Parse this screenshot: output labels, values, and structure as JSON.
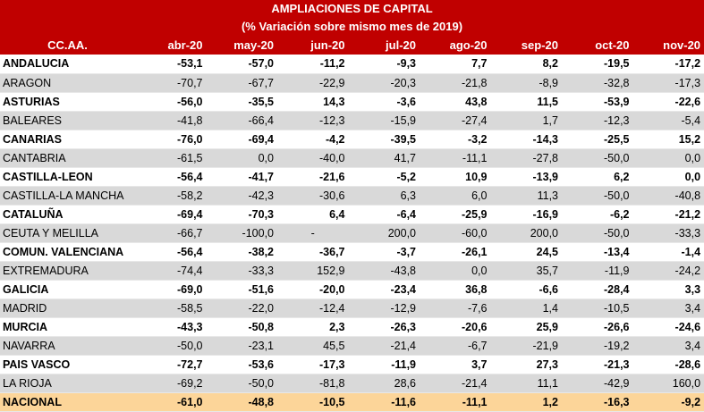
{
  "title": "AMPLIACIONES DE CAPITAL",
  "subtitle": "(%  Variación sobre mismo mes de 2019)",
  "columns": [
    "CC.AA.",
    "abr-20",
    "may-20",
    "jun-20",
    "jul-20",
    "ago-20",
    "sep-20",
    "oct-20",
    "nov-20"
  ],
  "rows": [
    [
      "ANDALUCIA",
      "-53,1",
      "-57,0",
      "-11,2",
      "-9,3",
      "7,7",
      "8,2",
      "-19,5",
      "-17,2"
    ],
    [
      "ARAGON",
      "-70,7",
      "-67,7",
      "-22,9",
      "-20,3",
      "-21,8",
      "-8,9",
      "-32,8",
      "-17,3"
    ],
    [
      "ASTURIAS",
      "-56,0",
      "-35,5",
      "14,3",
      "-3,6",
      "43,8",
      "11,5",
      "-53,9",
      "-22,6"
    ],
    [
      "BALEARES",
      "-41,8",
      "-66,4",
      "-12,3",
      "-15,9",
      "-27,4",
      "1,7",
      "-12,3",
      "-5,4"
    ],
    [
      "CANARIAS",
      "-76,0",
      "-69,4",
      "-4,2",
      "-39,5",
      "-3,2",
      "-14,3",
      "-25,5",
      "15,2"
    ],
    [
      "CANTABRIA",
      "-61,5",
      "0,0",
      "-40,0",
      "41,7",
      "-11,1",
      "-27,8",
      "-50,0",
      "0,0"
    ],
    [
      "CASTILLA-LEON",
      "-56,4",
      "-41,7",
      "-21,6",
      "-5,2",
      "10,9",
      "-13,9",
      "6,2",
      "0,0"
    ],
    [
      "CASTILLA-LA MANCHA",
      "-58,2",
      "-42,3",
      "-30,6",
      "6,3",
      "6,0",
      "11,3",
      "-50,0",
      "-40,8"
    ],
    [
      "CATALUÑA",
      "-69,4",
      "-70,3",
      "6,4",
      "-6,4",
      "-25,9",
      "-16,9",
      "-6,2",
      "-21,2"
    ],
    [
      "CEUTA Y MELILLA",
      "-66,7",
      "-100,0",
      "-",
      "200,0",
      "-60,0",
      "200,0",
      "-50,0",
      "-33,3"
    ],
    [
      "COMUN. VALENCIANA",
      "-56,4",
      "-38,2",
      "-36,7",
      "-3,7",
      "-26,1",
      "24,5",
      "-13,4",
      "-1,4"
    ],
    [
      "EXTREMADURA",
      "-74,4",
      "-33,3",
      "152,9",
      "-43,8",
      "0,0",
      "35,7",
      "-11,9",
      "-24,2"
    ],
    [
      "GALICIA",
      "-69,0",
      "-51,6",
      "-20,0",
      "-23,4",
      "36,8",
      "-6,6",
      "-28,4",
      "3,3"
    ],
    [
      "MADRID",
      "-58,5",
      "-22,0",
      "-12,4",
      "-12,9",
      "-7,6",
      "1,4",
      "-10,5",
      "3,4"
    ],
    [
      "MURCIA",
      "-43,3",
      "-50,8",
      "2,3",
      "-26,3",
      "-20,6",
      "25,9",
      "-26,6",
      "-24,6"
    ],
    [
      "NAVARRA",
      "-50,0",
      "-23,1",
      "45,5",
      "-21,4",
      "-6,7",
      "-21,9",
      "-19,2",
      "3,4"
    ],
    [
      "PAIS VASCO",
      "-72,7",
      "-53,6",
      "-17,3",
      "-11,9",
      "3,7",
      "27,3",
      "-21,3",
      "-28,6"
    ],
    [
      "LA RIOJA",
      "-69,2",
      "-50,0",
      "-81,8",
      "28,6",
      "-21,4",
      "11,1",
      "-42,9",
      "160,0"
    ]
  ],
  "total": [
    "NACIONAL",
    "-61,0",
    "-48,8",
    "-10,5",
    "-11,6",
    "-11,1",
    "1,2",
    "-16,3",
    "-9,2"
  ],
  "colors": {
    "header_bg": "#c00000",
    "header_text": "#ffffff",
    "row_alt_bg": "#d9d9d9",
    "total_bg": "#fcd599"
  }
}
